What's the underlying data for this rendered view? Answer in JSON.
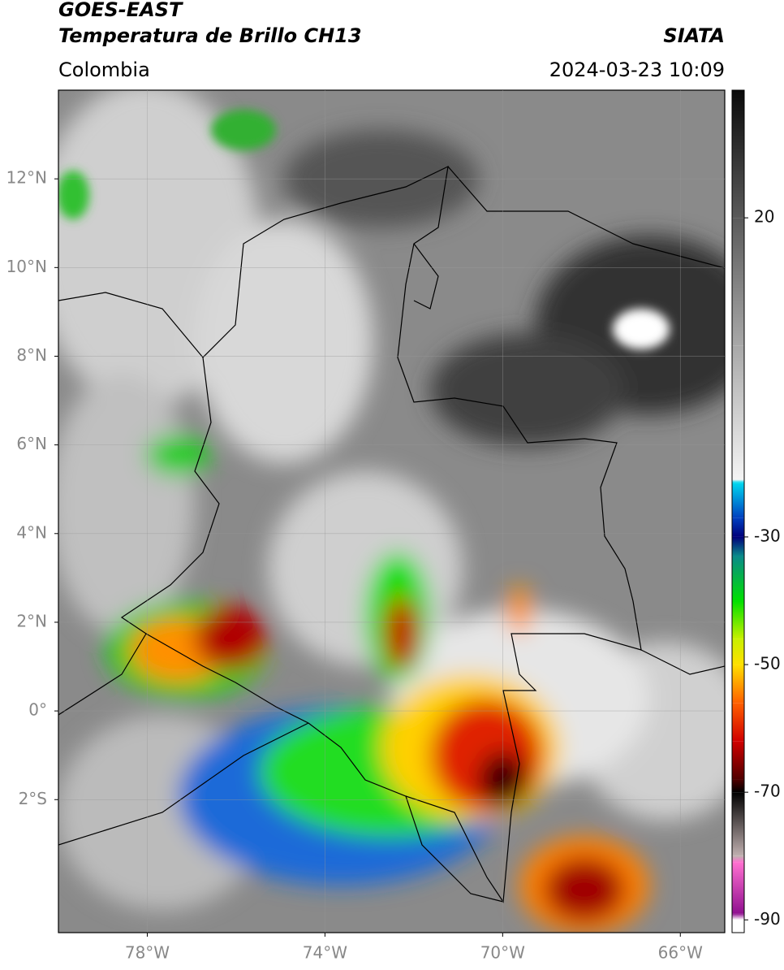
{
  "header": {
    "product": "GOES-EAST",
    "title": "Temperatura de Brillo CH13",
    "source": "SIATA",
    "region": "Colombia",
    "datetime": "2024-03-23 10:09"
  },
  "map": {
    "lonlim": [
      -80,
      -65
    ],
    "latlim": [
      -5,
      14
    ],
    "lat_ticks": [
      {
        "value": 12,
        "label": "12°N"
      },
      {
        "value": 10,
        "label": "10°N"
      },
      {
        "value": 8,
        "label": "8°N"
      },
      {
        "value": 6,
        "label": "6°N"
      },
      {
        "value": 4,
        "label": "4°N"
      },
      {
        "value": 2,
        "label": "2°N"
      },
      {
        "value": 0,
        "label": "0°"
      },
      {
        "value": -2,
        "label": "2°S"
      }
    ],
    "lon_ticks": [
      {
        "value": -78,
        "label": "78°W"
      },
      {
        "value": -74,
        "label": "74°W"
      },
      {
        "value": -70,
        "label": "70°W"
      },
      {
        "value": -66,
        "label": "66°W"
      }
    ],
    "grid": true
  },
  "colorbar": {
    "lim": [
      -92,
      40
    ],
    "ticks": [
      20,
      -30,
      -50,
      -70,
      -90
    ],
    "stops": [
      [
        40,
        "#0a0a0a"
      ],
      [
        20,
        "#5a5a5a"
      ],
      [
        0,
        "#a8a8a8"
      ],
      [
        -21,
        "#f4f4f4"
      ],
      [
        -21.5,
        "#00d8f0"
      ],
      [
        -27,
        "#0040c0"
      ],
      [
        -30,
        "#00007a"
      ],
      [
        -33,
        "#0a8a8a"
      ],
      [
        -40,
        "#00e000"
      ],
      [
        -46,
        "#c8f000"
      ],
      [
        -50,
        "#ffe000"
      ],
      [
        -56,
        "#ff6000"
      ],
      [
        -62,
        "#d00000"
      ],
      [
        -68,
        "#500000"
      ],
      [
        -70,
        "#000000"
      ],
      [
        -80,
        "#c0b0b0"
      ],
      [
        -81,
        "#ff70d0"
      ],
      [
        -89,
        "#901090"
      ],
      [
        -90,
        "#ffffff"
      ],
      [
        -92,
        "#ffffff"
      ]
    ]
  }
}
